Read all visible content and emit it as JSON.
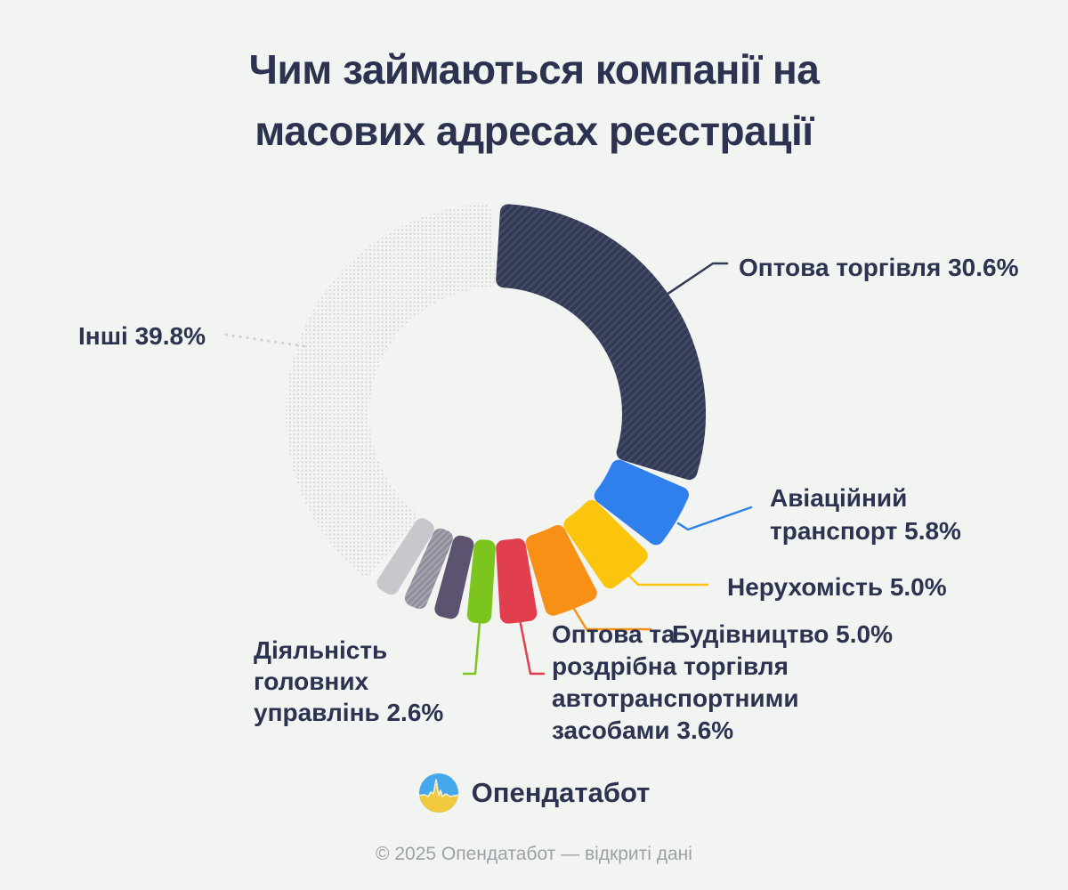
{
  "header": {
    "title_line1": "Чим займаються компанії на",
    "title_line2": "масових адресах реєстрації"
  },
  "chart_data": {
    "type": "pie",
    "subtype": "donut",
    "title": "Чим займаються компанії на масових адресах реєстрації",
    "unit": "%",
    "start_angle_deg": 0,
    "direction": "clockwise",
    "segments": [
      {
        "label": "Оптова торгівля",
        "value": 30.6,
        "color": "#333A56",
        "texture": "hatch-navy"
      },
      {
        "label": "Авіаційний транспорт",
        "value": 5.8,
        "color": "#2F80ED",
        "texture": "solid"
      },
      {
        "label": "Нерухомість",
        "value": 5.0,
        "color": "#FBC40D",
        "texture": "solid"
      },
      {
        "label": "Будівництво",
        "value": 5.0,
        "color": "#F89015",
        "texture": "solid"
      },
      {
        "label": "Оптова та роздрібна торгівля автотранспортними засобами",
        "value": 3.6,
        "color": "#E23F4E",
        "texture": "solid"
      },
      {
        "label": "Діяльність головних управлінь",
        "value": 2.6,
        "color": "#7CC41E",
        "texture": "solid"
      },
      {
        "label": "",
        "value": 2.6,
        "color": "#5C5370",
        "texture": "solid"
      },
      {
        "label": "",
        "value": 2.5,
        "color": "#908E9A",
        "texture": "hatch-gray"
      },
      {
        "label": "",
        "value": 2.5,
        "color": "#C8C7CC",
        "texture": "solid"
      },
      {
        "label": "Інші",
        "value": 39.8,
        "color": "#D2D3D7",
        "texture": "dots"
      }
    ]
  },
  "callouts": [
    {
      "lines": [
        "Оптова торгівля 30.6%"
      ]
    },
    {
      "lines": [
        "Авіаційний",
        "транспорт 5.8%"
      ]
    },
    {
      "lines": [
        "Нерухомість 5.0%"
      ]
    },
    {
      "lines": [
        "Будівництво 5.0%"
      ]
    },
    {
      "lines": [
        "Оптова та",
        "роздрібна торгівля",
        "автотранспортними",
        "засобами 3.6%"
      ]
    },
    {
      "lines": [
        "Діяльність",
        "головних",
        "управлінь 2.6%"
      ]
    },
    {
      "lines": [
        "Інші 39.8%"
      ]
    }
  ],
  "footer": {
    "logo_text": "Опендатабот",
    "copyright": "© 2025 Опендатабот — відкриті дані"
  }
}
